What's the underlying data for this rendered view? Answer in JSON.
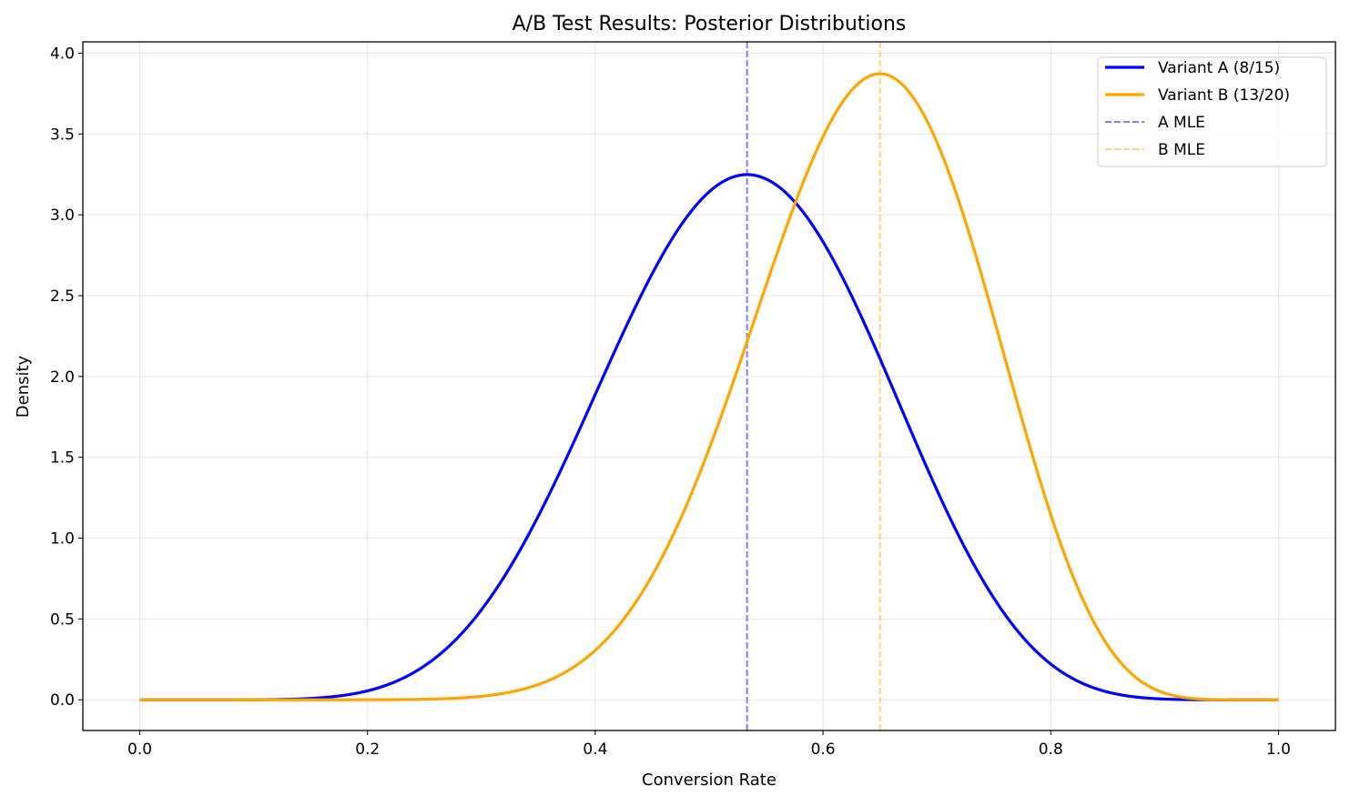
{
  "chart_data": {
    "type": "line",
    "title": "A/B Test Results: Posterior Distributions",
    "xlabel": "Conversion Rate",
    "ylabel": "Density",
    "xlim": [
      -0.05,
      1.05
    ],
    "ylim": [
      -0.19,
      4.07
    ],
    "xticks": [
      0.0,
      0.2,
      0.4,
      0.6,
      0.8,
      1.0
    ],
    "xtick_labels": [
      "0.0",
      "0.2",
      "0.4",
      "0.6",
      "0.8",
      "1.0"
    ],
    "yticks": [
      0.0,
      0.5,
      1.0,
      1.5,
      2.0,
      2.5,
      3.0,
      3.5,
      4.0
    ],
    "ytick_labels": [
      "0.0",
      "0.5",
      "1.0",
      "1.5",
      "2.0",
      "2.5",
      "3.0",
      "3.5",
      "4.0"
    ],
    "grid": true,
    "legend_placement": "upper-right",
    "series": [
      {
        "name": "Variant A (8/15)",
        "distribution": "beta",
        "alpha": 9,
        "beta": 8,
        "x_range": [
          0,
          1
        ],
        "color": "#0000ff",
        "style": "solid"
      },
      {
        "name": "Variant B (13/20)",
        "distribution": "beta",
        "alpha": 14,
        "beta": 8,
        "x_range": [
          0,
          1
        ],
        "color": "#ffa500",
        "style": "solid"
      }
    ],
    "vlines": [
      {
        "name": "A MLE",
        "x": 0.5333,
        "color": "#0000ff",
        "opacity": 0.5,
        "style": "dashed"
      },
      {
        "name": "B MLE",
        "x": 0.65,
        "color": "#ffa500",
        "opacity": 0.5,
        "style": "dashed"
      }
    ]
  }
}
